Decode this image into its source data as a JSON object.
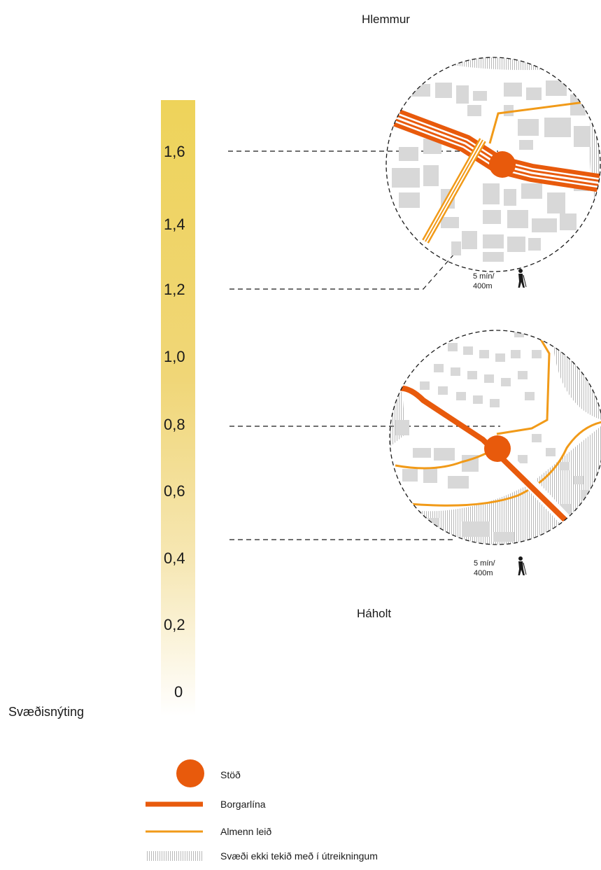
{
  "colors": {
    "scale_top": "#EED35A",
    "scale_bottom": "#FFFFFF",
    "station": "#E85A0C",
    "borgarlina": "#E85A0C",
    "almenn_leid": "#F19A18",
    "building": "#d9d9d9",
    "dashed": "#1a1a1a"
  },
  "scale": {
    "title": "Svæðisnýting",
    "ticks": [
      "1,6",
      "1,4",
      "1,2",
      "1,0",
      "0,8",
      "0,6",
      "0,4",
      "0,2",
      "0"
    ]
  },
  "hlemmur": {
    "name": "Hlemmur",
    "walk_line1": "5 mín/",
    "walk_line2": "400m",
    "icon": "pedestrian-icon"
  },
  "haholt": {
    "name": "Háholt",
    "walk_line1": "5 mín/",
    "walk_line2": "400m",
    "icon": "pedestrian-icon"
  },
  "legend": {
    "station": "Stöð",
    "borgarlina": "Borgarlína",
    "almenn": "Almenn leið",
    "excluded": "Svæði ekki tekið með í útreikningum"
  }
}
